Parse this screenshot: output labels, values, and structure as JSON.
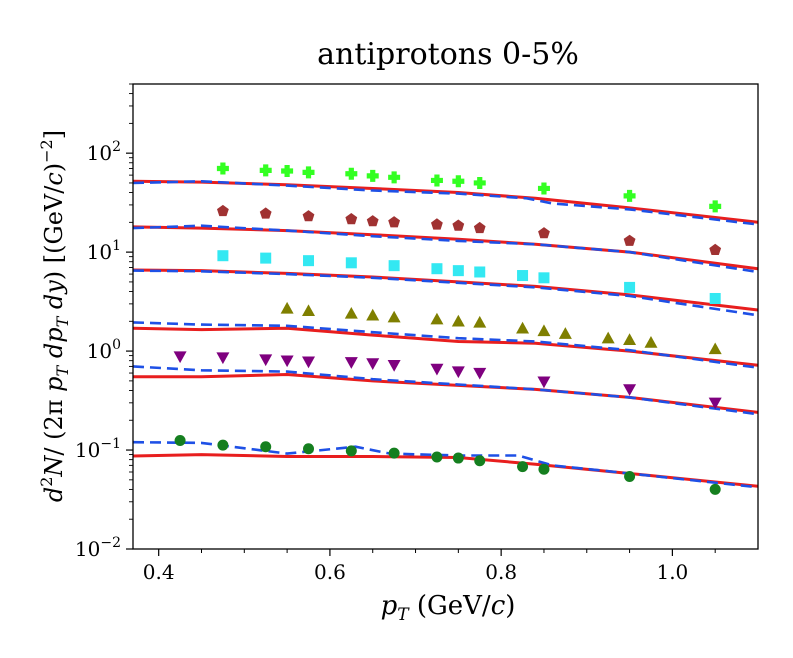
{
  "chart_data": {
    "type": "scatter",
    "title": "antiprotons 0-5%",
    "xlabel": "p_T (GeV/c)",
    "ylabel": "d²N/ (2π p_T dp_T dy)  [(GeV/c)⁻²]",
    "xlim": [
      0.37,
      1.1
    ],
    "ylim": [
      0.01,
      500
    ],
    "yscale": "log",
    "x_ticks": [
      {
        "value": 0.4,
        "label": "0.4"
      },
      {
        "value": 0.6,
        "label": "0.6"
      },
      {
        "value": 0.8,
        "label": "0.8"
      },
      {
        "value": 1.0,
        "label": "1.0"
      }
    ],
    "y_ticks": [
      {
        "value": 0.01,
        "base": "10",
        "exp": "−2"
      },
      {
        "value": 0.1,
        "base": "10",
        "exp": "−1"
      },
      {
        "value": 1,
        "base": "10",
        "exp": "0"
      },
      {
        "value": 10,
        "base": "10",
        "exp": "1"
      },
      {
        "value": 100,
        "base": "10",
        "exp": "2"
      }
    ],
    "data_series": [
      {
        "name": "cross",
        "marker": "plus",
        "color": "#33ff22",
        "x": [
          0.475,
          0.525,
          0.55,
          0.575,
          0.625,
          0.65,
          0.675,
          0.725,
          0.75,
          0.775,
          0.85,
          0.95,
          1.05
        ],
        "y": [
          70,
          67,
          66,
          64,
          62,
          59,
          57,
          53,
          52,
          50,
          44,
          37,
          29
        ]
      },
      {
        "name": "pentagon",
        "marker": "pentagon",
        "color": "#a03232",
        "x": [
          0.475,
          0.525,
          0.575,
          0.625,
          0.65,
          0.675,
          0.725,
          0.75,
          0.775,
          0.85,
          0.95,
          1.05
        ],
        "y": [
          26,
          24.5,
          23,
          21.5,
          20.5,
          20,
          19,
          18.5,
          17.5,
          15.5,
          13,
          10.5
        ]
      },
      {
        "name": "square",
        "marker": "square",
        "color": "#33e8f2",
        "x": [
          0.475,
          0.525,
          0.575,
          0.625,
          0.675,
          0.725,
          0.75,
          0.775,
          0.825,
          0.85,
          0.95,
          1.05
        ],
        "y": [
          9.2,
          8.7,
          8.2,
          7.8,
          7.3,
          6.8,
          6.5,
          6.3,
          5.8,
          5.5,
          4.4,
          3.4
        ]
      },
      {
        "name": "triangle-up",
        "marker": "triangle-up",
        "color": "#7f7f00",
        "x": [
          0.55,
          0.575,
          0.625,
          0.65,
          0.675,
          0.725,
          0.75,
          0.775,
          0.825,
          0.85,
          0.875,
          0.925,
          0.95,
          0.975,
          1.05
        ],
        "y": [
          2.7,
          2.55,
          2.4,
          2.3,
          2.2,
          2.1,
          2.0,
          1.95,
          1.7,
          1.6,
          1.5,
          1.35,
          1.3,
          1.22,
          1.05
        ]
      },
      {
        "name": "triangle-down",
        "marker": "triangle-down",
        "color": "#7f007f",
        "x": [
          0.425,
          0.475,
          0.525,
          0.55,
          0.575,
          0.625,
          0.65,
          0.675,
          0.725,
          0.75,
          0.775,
          0.85,
          0.95,
          1.05
        ],
        "y": [
          0.88,
          0.86,
          0.82,
          0.8,
          0.78,
          0.77,
          0.75,
          0.72,
          0.66,
          0.62,
          0.6,
          0.49,
          0.41,
          0.3
        ]
      },
      {
        "name": "circle",
        "marker": "circle",
        "color": "#157f1f",
        "x": [
          0.425,
          0.475,
          0.525,
          0.575,
          0.625,
          0.675,
          0.725,
          0.75,
          0.775,
          0.825,
          0.85,
          0.95,
          1.05
        ],
        "y": [
          0.125,
          0.112,
          0.108,
          0.103,
          0.098,
          0.093,
          0.085,
          0.083,
          0.078,
          0.068,
          0.064,
          0.054,
          0.04
        ]
      }
    ],
    "model_curves": [
      {
        "name": "solid-1",
        "style": "solid",
        "color": "#e81e1e",
        "x": [
          0.37,
          0.45,
          0.55,
          0.65,
          0.75,
          0.84,
          0.95,
          1.1
        ],
        "y": [
          52,
          51,
          48,
          44,
          40,
          35,
          28,
          20
        ]
      },
      {
        "name": "dashed-1",
        "style": "dashed",
        "color": "#1e50e6",
        "x": [
          0.37,
          0.45,
          0.55,
          0.65,
          0.75,
          0.83,
          0.86,
          0.95,
          1.1
        ],
        "y": [
          50,
          52,
          47,
          42,
          39,
          35,
          31,
          27,
          19
        ]
      },
      {
        "name": "solid-2",
        "style": "solid",
        "color": "#e81e1e",
        "x": [
          0.37,
          0.45,
          0.55,
          0.65,
          0.75,
          0.84,
          0.95,
          1.1
        ],
        "y": [
          18,
          17.5,
          16.5,
          15,
          13.5,
          12,
          10,
          6.8
        ]
      },
      {
        "name": "dashed-2",
        "style": "dashed",
        "color": "#1e50e6",
        "x": [
          0.37,
          0.45,
          0.55,
          0.65,
          0.75,
          0.84,
          0.95,
          1.1
        ],
        "y": [
          17.5,
          18.5,
          16.5,
          14.5,
          13,
          12,
          10,
          6.3
        ]
      },
      {
        "name": "solid-3",
        "style": "solid",
        "color": "#e81e1e",
        "x": [
          0.37,
          0.45,
          0.55,
          0.65,
          0.75,
          0.84,
          0.95,
          1.1
        ],
        "y": [
          6.6,
          6.5,
          6.1,
          5.6,
          5.0,
          4.5,
          3.7,
          2.6
        ]
      },
      {
        "name": "dashed-3",
        "style": "dashed",
        "color": "#1e50e6",
        "x": [
          0.37,
          0.45,
          0.55,
          0.65,
          0.75,
          0.84,
          0.95,
          1.1
        ],
        "y": [
          6.5,
          6.4,
          6.0,
          5.5,
          4.9,
          4.4,
          3.6,
          2.3
        ]
      },
      {
        "name": "solid-4",
        "style": "solid",
        "color": "#e81e1e",
        "x": [
          0.37,
          0.45,
          0.55,
          0.65,
          0.75,
          0.84,
          0.95,
          1.1
        ],
        "y": [
          1.7,
          1.65,
          1.7,
          1.45,
          1.25,
          1.2,
          1.0,
          0.72
        ]
      },
      {
        "name": "dashed-4",
        "style": "dashed",
        "color": "#1e50e6",
        "x": [
          0.37,
          0.45,
          0.55,
          0.65,
          0.75,
          0.84,
          0.95,
          1.1
        ],
        "y": [
          1.95,
          1.85,
          1.8,
          1.55,
          1.35,
          1.25,
          1.02,
          0.68
        ]
      },
      {
        "name": "solid-5",
        "style": "solid",
        "color": "#e81e1e",
        "x": [
          0.37,
          0.45,
          0.55,
          0.65,
          0.75,
          0.84,
          0.95,
          1.1
        ],
        "y": [
          0.55,
          0.55,
          0.58,
          0.5,
          0.45,
          0.41,
          0.34,
          0.24
        ]
      },
      {
        "name": "dashed-5",
        "style": "dashed",
        "color": "#1e50e6",
        "x": [
          0.37,
          0.45,
          0.55,
          0.65,
          0.75,
          0.84,
          0.95,
          1.1
        ],
        "y": [
          0.7,
          0.64,
          0.62,
          0.52,
          0.46,
          0.41,
          0.34,
          0.23
        ]
      },
      {
        "name": "solid-6",
        "style": "solid",
        "color": "#e81e1e",
        "x": [
          0.37,
          0.45,
          0.55,
          0.65,
          0.75,
          0.84,
          0.95,
          1.1
        ],
        "y": [
          0.087,
          0.09,
          0.086,
          0.086,
          0.084,
          0.072,
          0.058,
          0.043
        ]
      },
      {
        "name": "dashed-6",
        "style": "dashed",
        "color": "#1e50e6",
        "x": [
          0.37,
          0.45,
          0.55,
          0.63,
          0.67,
          0.75,
          0.82,
          0.86,
          0.95,
          1.1
        ],
        "y": [
          0.12,
          0.118,
          0.092,
          0.108,
          0.092,
          0.088,
          0.088,
          0.07,
          0.058,
          0.042
        ]
      }
    ]
  }
}
